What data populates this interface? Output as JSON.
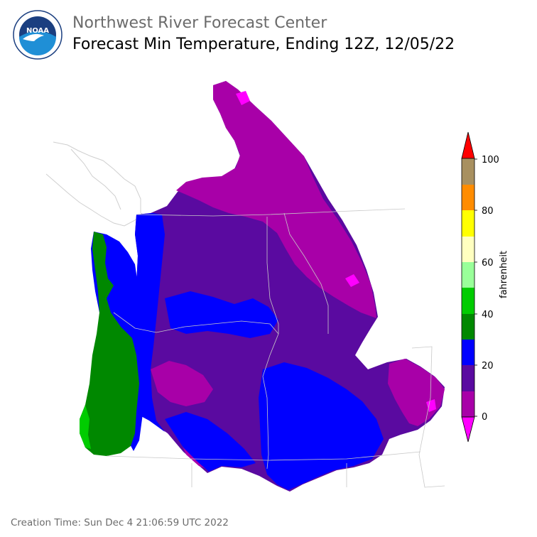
{
  "header": {
    "org": "Northwest River Forecast Center",
    "title": "Forecast Min Temperature, Ending 12Z, 12/05/22"
  },
  "logo": {
    "icon": "noaa-logo-icon",
    "text": "NOAA"
  },
  "legend": {
    "unit": "fahrenheit",
    "ticks": [
      "0",
      "20",
      "40",
      "60",
      "80",
      "100"
    ],
    "colors": {
      "below_0": "#ff00ff",
      "0_10": "#a800a8",
      "10_20": "#5a0aa0",
      "20_30": "#0000ff",
      "30_40": "#008800",
      "40_50": "#00cc00",
      "50_60": "#99ff99",
      "60_70": "#ffffc0",
      "70_80": "#ffff00",
      "80_90": "#ff8c00",
      "90_100": "#a89060",
      "above_100": "#ff0000"
    }
  },
  "footer": {
    "creation_time": "Creation Time: Sun Dec 4 21:06:59 UTC 2022"
  }
}
